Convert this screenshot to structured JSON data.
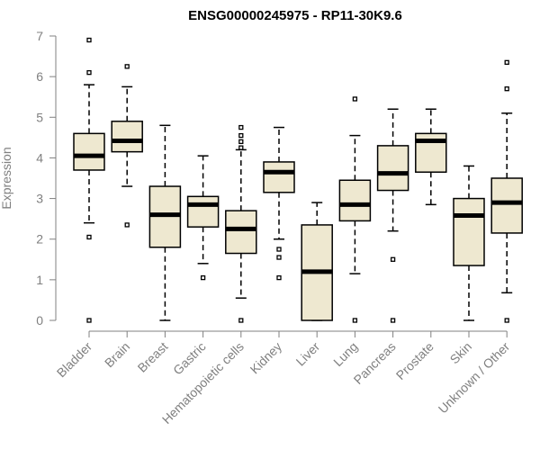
{
  "chart_data": {
    "type": "boxplot",
    "title": "ENSG00000245975 - RP11-30K9.6",
    "xlabel": "",
    "ylabel": "Expression",
    "ylim": [
      0,
      7
    ],
    "yticks": [
      0,
      1,
      2,
      3,
      4,
      5,
      6,
      7
    ],
    "box_color": "#EEE8D0",
    "categories": [
      "Bladder",
      "Brain",
      "Breast",
      "Gastric",
      "Hematopoietic cells",
      "Kidney",
      "Liver",
      "Lung",
      "Pancreas",
      "Prostate",
      "Skin",
      "Unknown / Other"
    ],
    "series": [
      {
        "name": "Bladder",
        "whisker_low": 2.4,
        "q1": 3.7,
        "median": 4.05,
        "q3": 4.6,
        "whisker_high": 5.8,
        "outliers": [
          6.9,
          6.1,
          2.05,
          0.0
        ]
      },
      {
        "name": "Brain",
        "whisker_low": 3.3,
        "q1": 4.15,
        "median": 4.42,
        "q3": 4.9,
        "whisker_high": 5.75,
        "outliers": [
          6.25,
          2.35
        ]
      },
      {
        "name": "Breast",
        "whisker_low": 0.0,
        "q1": 1.8,
        "median": 2.6,
        "q3": 3.3,
        "whisker_high": 4.8,
        "outliers": []
      },
      {
        "name": "Gastric",
        "whisker_low": 1.4,
        "q1": 2.3,
        "median": 2.85,
        "q3": 3.05,
        "whisker_high": 4.05,
        "outliers": [
          1.05
        ]
      },
      {
        "name": "Hematopoietic cells",
        "whisker_low": 0.55,
        "q1": 1.65,
        "median": 2.25,
        "q3": 2.7,
        "whisker_high": 4.2,
        "outliers": [
          4.75,
          4.55,
          4.4,
          4.25,
          0.0
        ]
      },
      {
        "name": "Kidney",
        "whisker_low": 2.0,
        "q1": 3.15,
        "median": 3.65,
        "q3": 3.9,
        "whisker_high": 4.75,
        "outliers": [
          1.75,
          1.55,
          1.05
        ]
      },
      {
        "name": "Liver",
        "whisker_low": 0.0,
        "q1": 0.0,
        "median": 1.2,
        "q3": 2.35,
        "whisker_high": 2.9,
        "outliers": []
      },
      {
        "name": "Lung",
        "whisker_low": 1.15,
        "q1": 2.45,
        "median": 2.85,
        "q3": 3.45,
        "whisker_high": 4.55,
        "outliers": [
          5.45,
          0.0
        ]
      },
      {
        "name": "Pancreas",
        "whisker_low": 2.2,
        "q1": 3.2,
        "median": 3.62,
        "q3": 4.3,
        "whisker_high": 5.2,
        "outliers": [
          1.5,
          0.0
        ]
      },
      {
        "name": "Prostate",
        "whisker_low": 2.85,
        "q1": 3.65,
        "median": 4.42,
        "q3": 4.6,
        "whisker_high": 5.2,
        "outliers": []
      },
      {
        "name": "Skin",
        "whisker_low": 0.0,
        "q1": 1.35,
        "median": 2.58,
        "q3": 3.0,
        "whisker_high": 3.8,
        "outliers": []
      },
      {
        "name": "Unknown / Other",
        "whisker_low": 0.68,
        "q1": 2.15,
        "median": 2.9,
        "q3": 3.5,
        "whisker_high": 5.1,
        "outliers": [
          6.35,
          5.7,
          0.0
        ]
      }
    ]
  }
}
